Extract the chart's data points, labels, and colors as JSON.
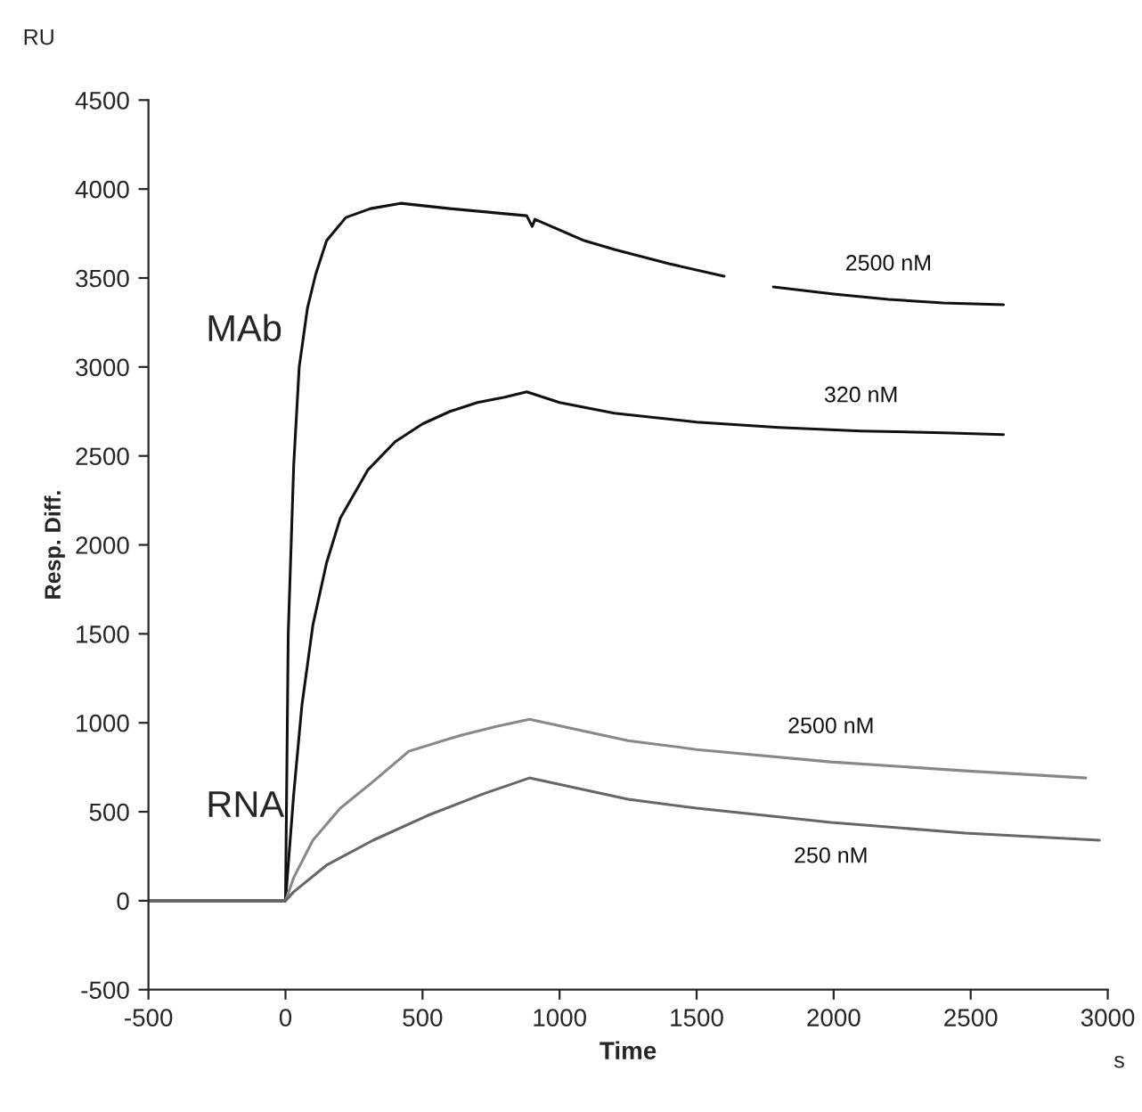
{
  "chart_data": {
    "type": "line",
    "xlabel": "Time",
    "ylabel": "Resp. Diff.",
    "xlim": [
      -500,
      3000
    ],
    "ylim": [
      -500,
      4500
    ],
    "xticks": [
      -500,
      0,
      500,
      1000,
      1500,
      2000,
      2500,
      3000
    ],
    "yticks": [
      -500,
      0,
      500,
      1000,
      1500,
      2000,
      2500,
      3000,
      3500,
      4000,
      4500
    ],
    "grid": false,
    "legend": false,
    "marker": "none",
    "line_style": "solid",
    "series": [
      {
        "name": "2500 nM",
        "color": "#111111",
        "x": [
          -500,
          0,
          10,
          30,
          50,
          80,
          110,
          150,
          220,
          310,
          420,
          600,
          880,
          900,
          910,
          1090,
          1200,
          1400,
          1600,
          null,
          1780,
          2000,
          2200,
          2400,
          2620
        ],
        "values": [
          0,
          0,
          1500,
          2450,
          3000,
          3330,
          3520,
          3710,
          3840,
          3890,
          3920,
          3890,
          3850,
          3790,
          3830,
          3710,
          3660,
          3580,
          3510,
          null,
          3450,
          3410,
          3380,
          3360,
          3350
        ]
      },
      {
        "name": "320 nM",
        "color": "#111111",
        "x": [
          -500,
          0,
          30,
          60,
          100,
          150,
          200,
          300,
          400,
          500,
          600,
          700,
          800,
          880,
          1000,
          1200,
          1500,
          1800,
          2100,
          2400,
          2620
        ],
        "values": [
          0,
          0,
          600,
          1100,
          1550,
          1900,
          2150,
          2420,
          2580,
          2680,
          2750,
          2800,
          2830,
          2860,
          2800,
          2740,
          2690,
          2660,
          2640,
          2630,
          2620
        ]
      },
      {
        "name": "2500 nM",
        "color": "#888888",
        "x": [
          -500,
          0,
          30,
          100,
          200,
          320,
          450,
          640,
          770,
          890,
          1250,
          1500,
          1990,
          2480,
          2920
        ],
        "values": [
          0,
          0,
          130,
          340,
          520,
          670,
          840,
          930,
          980,
          1020,
          900,
          850,
          780,
          730,
          690
        ]
      },
      {
        "name": "250 nM",
        "color": "#666666",
        "x": [
          -500,
          0,
          30,
          150,
          320,
          520,
          720,
          890,
          1250,
          1500,
          1990,
          2480,
          2970
        ],
        "values": [
          0,
          0,
          50,
          200,
          340,
          480,
          600,
          690,
          570,
          520,
          440,
          380,
          340
        ]
      }
    ],
    "annotations": [
      "MAb",
      "RNA",
      "RU",
      "s"
    ]
  }
}
